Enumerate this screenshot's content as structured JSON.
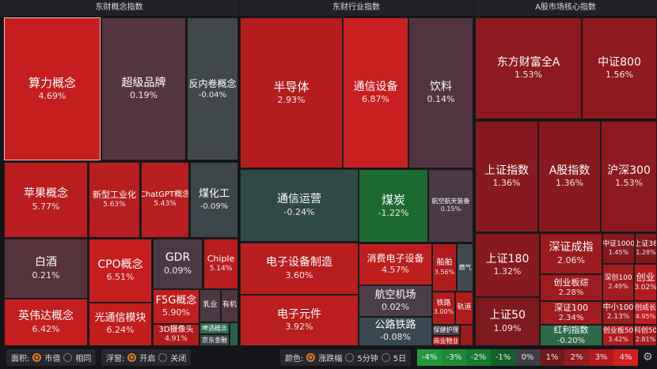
{
  "panels": [
    {
      "title": "东财概念指数"
    },
    {
      "title": "东财行业指数"
    },
    {
      "title": "A股市场核心指数"
    }
  ],
  "tiles": [
    {
      "name": "算力概念",
      "pct": "4.69%",
      "color": "#c41e1e"
    },
    {
      "name": "超级品牌",
      "pct": "0.19%",
      "color": "#553540"
    },
    {
      "name": "反内卷概念",
      "pct": "-0.04%",
      "color": "#41484c"
    },
    {
      "name": "苹果概念",
      "pct": "5.77%",
      "color": "#ba1d1d"
    },
    {
      "name": "新型工业化",
      "pct": "5.63%",
      "color": "#b81e1e"
    },
    {
      "name": "ChatGPT概念",
      "pct": "5.43%",
      "color": "#b81e1e"
    },
    {
      "name": "煤化工",
      "pct": "-0.09%",
      "color": "#3c464a"
    },
    {
      "name": "白酒",
      "pct": "0.21%",
      "color": "#56323b"
    },
    {
      "name": "英伟达概念",
      "pct": "6.42%",
      "color": "#c41e1e"
    },
    {
      "name": "CPO概念",
      "pct": "6.51%",
      "color": "#c41e1e"
    },
    {
      "name": "光通信模块",
      "pct": "6.24%",
      "color": "#c21e1e"
    },
    {
      "name": "GDR",
      "pct": "0.09%",
      "color": "#4b3a44"
    },
    {
      "name": "Chiple",
      "pct": "5.14%",
      "color": "#b81e1e"
    },
    {
      "name": "F5G概念",
      "pct": "5.90%",
      "color": "#c01e1e"
    },
    {
      "name": "3D摄像头",
      "pct": "4.91%",
      "color": "#b01c1c"
    },
    {
      "name": "乳业",
      "pct": "",
      "color": "#4a3a44"
    },
    {
      "name": "有机",
      "pct": "",
      "color": "#4e3640"
    },
    {
      "name": "啤酒概念",
      "pct": "",
      "color": "#2e6a50"
    },
    {
      "name": "京东金融",
      "pct": "",
      "color": "#3c464c"
    },
    {
      "name": "",
      "pct": "",
      "color": "#2e6048"
    },
    {
      "name": "半导体",
      "pct": "2.93%",
      "color": "#b51d1d"
    },
    {
      "name": "通信设备",
      "pct": "6.87%",
      "color": "#c82020"
    },
    {
      "name": "饮料",
      "pct": "0.14%",
      "color": "#523440"
    },
    {
      "name": "通信运营",
      "pct": "-0.24%",
      "color": "#2e4a44"
    },
    {
      "name": "煤炭",
      "pct": "-1.22%",
      "color": "#1d6a30"
    },
    {
      "name": "航空航天装备",
      "pct": "0.15%",
      "color": "#4a3a46"
    },
    {
      "name": "电子设备制造",
      "pct": "3.60%",
      "color": "#b81e1e"
    },
    {
      "name": "电子元件",
      "pct": "3.92%",
      "color": "#bb1e1e"
    },
    {
      "name": "消费电子设备",
      "pct": "4.57%",
      "color": "#be1e1e"
    },
    {
      "name": "航空机场",
      "pct": "0.02%",
      "color": "#4a3e48"
    },
    {
      "name": "公路铁路",
      "pct": "-0.08%",
      "color": "#384850"
    },
    {
      "name": "船舶",
      "pct": "3.56%",
      "color": "#b01c1c"
    },
    {
      "name": "燃气",
      "pct": "",
      "color": "#3e4a50"
    },
    {
      "name": "铁路",
      "pct": "3.00%",
      "color": "#b01c1c"
    },
    {
      "name": "轨道",
      "pct": "",
      "color": "#b01c1c"
    },
    {
      "name": "保健护理",
      "pct": "",
      "color": "#4a3e48"
    },
    {
      "name": "商业物业",
      "pct": "",
      "color": "#b01c1c"
    },
    {
      "name": "",
      "pct": "",
      "color": "#9a1c1c"
    },
    {
      "name": "东方财富全A",
      "pct": "1.53%",
      "color": "#8c1a1e"
    },
    {
      "name": "中证800",
      "pct": "1.56%",
      "color": "#8e1a1e"
    },
    {
      "name": "上证指数",
      "pct": "1.36%",
      "color": "#861a1e"
    },
    {
      "name": "A股指数",
      "pct": "1.36%",
      "color": "#861a1e"
    },
    {
      "name": "沪深300",
      "pct": "1.53%",
      "color": "#8c1a1e"
    },
    {
      "name": "上证180",
      "pct": "1.32%",
      "color": "#861a1e"
    },
    {
      "name": "上证50",
      "pct": "1.09%",
      "color": "#7c1a1e"
    },
    {
      "name": "深证成指",
      "pct": "2.06%",
      "color": "#9a1c1e"
    },
    {
      "name": "创业板综",
      "pct": "2.28%",
      "color": "#9e1c1e"
    },
    {
      "name": "深证100",
      "pct": "2.34%",
      "color": "#a01c1e"
    },
    {
      "name": "红利指数",
      "pct": "-0.20%",
      "color": "#2c6a48"
    },
    {
      "name": "中证1000",
      "pct": "1.45%",
      "color": "#861a1e"
    },
    {
      "name": "上证38",
      "pct": "1.28%",
      "color": "#801a1e"
    },
    {
      "name": "深创100",
      "pct": "2.49%",
      "color": "#a21c1e"
    },
    {
      "name": "创业",
      "pct": "3.02%",
      "color": "#b01c1e"
    },
    {
      "name": "中小100",
      "pct": "2.13%",
      "color": "#9c1c1e"
    },
    {
      "name": "创成长",
      "pct": "4.95%",
      "color": "#c01e1e"
    },
    {
      "name": "创业板50",
      "pct": "3.42%",
      "color": "#b01c1e"
    },
    {
      "name": "科创50",
      "pct": "2.81%",
      "color": "#a81c1e"
    }
  ],
  "footer": {
    "area": {
      "label": "面积:",
      "options": [
        "市值",
        "相同"
      ],
      "selected": 0
    },
    "float": {
      "label": "浮窗:",
      "options": [
        "开启",
        "关闭"
      ],
      "selected": 0
    },
    "color": {
      "label": "颜色:",
      "options": [
        "涨跌幅",
        "5分钟",
        "5日"
      ],
      "selected": 0
    },
    "legend": [
      {
        "label": "-4%",
        "color": "#1f9a3c"
      },
      {
        "label": "-3%",
        "color": "#1c8a36"
      },
      {
        "label": "-2%",
        "color": "#187a30"
      },
      {
        "label": "-1%",
        "color": "#14602a"
      },
      {
        "label": "0%",
        "color": "#3c3e48"
      },
      {
        "label": "1%",
        "color": "#701a1e"
      },
      {
        "label": "2%",
        "color": "#921c1e"
      },
      {
        "label": "3%",
        "color": "#b01c1e"
      },
      {
        "label": "4%",
        "color": "#d02020"
      }
    ],
    "settings_icon": "gear-icon"
  }
}
